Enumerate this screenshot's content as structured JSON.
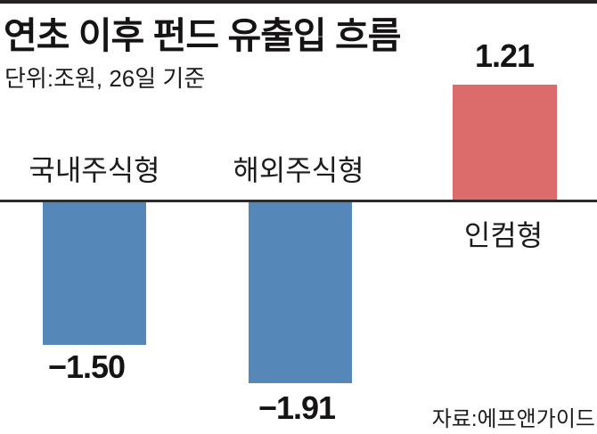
{
  "header": {
    "title": "연초 이후 펀드 유출입 흐름",
    "subtitle": "단위:조원, 26일 기준"
  },
  "source_label": "자료:에프앤가이드",
  "colors": {
    "positive_bar": "#dc6c6c",
    "negative_bar": "#5587b8",
    "baseline": "#2b2b2b",
    "top_rule": "#262223",
    "text": "#1a1a1a"
  },
  "chart_data": {
    "type": "bar",
    "title": "연초 이후 펀드 유출입 흐름",
    "subtitle": "단위:조원, 26일 기준",
    "unit": "조원",
    "as_of": "26일 기준",
    "categories": [
      "국내주식형",
      "해외주식형",
      "인컴형"
    ],
    "values": [
      -1.5,
      -1.91,
      1.21
    ],
    "value_labels": [
      "−1.50",
      "−1.91",
      "1.21"
    ],
    "bar_colors": [
      "#5587b8",
      "#5587b8",
      "#dc6c6c"
    ],
    "baseline": 0,
    "ylim": [
      -2.1,
      1.5
    ],
    "grid": false,
    "legend": false,
    "source": "자료:에프앤가이드"
  }
}
